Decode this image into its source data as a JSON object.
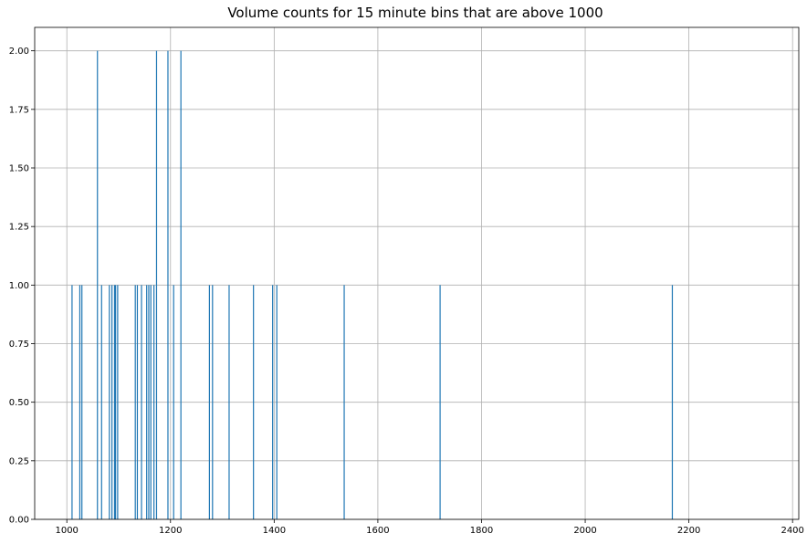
{
  "chart_data": {
    "type": "bar",
    "title": "Volume counts for 15 minute bins that are above 1000",
    "xlabel": "",
    "ylabel": "",
    "xlim": [
      938,
      2412
    ],
    "ylim": [
      0,
      2.1
    ],
    "grid": true,
    "bar_color": "#1f77b4",
    "grid_color": "#b0b0b0",
    "x_ticks": [
      {
        "value": 1000,
        "label": "1000"
      },
      {
        "value": 1200,
        "label": "1200"
      },
      {
        "value": 1400,
        "label": "1400"
      },
      {
        "value": 1600,
        "label": "1600"
      },
      {
        "value": 1800,
        "label": "1800"
      },
      {
        "value": 2000,
        "label": "2000"
      },
      {
        "value": 2200,
        "label": "2200"
      },
      {
        "value": 2400,
        "label": "2400"
      }
    ],
    "y_ticks": [
      {
        "value": 0.0,
        "label": "0.00"
      },
      {
        "value": 0.25,
        "label": "0.25"
      },
      {
        "value": 0.5,
        "label": "0.50"
      },
      {
        "value": 0.75,
        "label": "0.75"
      },
      {
        "value": 1.0,
        "label": "1.00"
      },
      {
        "value": 1.25,
        "label": "1.25"
      },
      {
        "value": 1.5,
        "label": "1.50"
      },
      {
        "value": 1.75,
        "label": "1.75"
      },
      {
        "value": 2.0,
        "label": "2.00"
      }
    ],
    "bin_width": 2,
    "bins": [
      {
        "x": 1009,
        "count": 1
      },
      {
        "x": 1024,
        "count": 1
      },
      {
        "x": 1028,
        "count": 1
      },
      {
        "x": 1058,
        "count": 2
      },
      {
        "x": 1066,
        "count": 1
      },
      {
        "x": 1081,
        "count": 1
      },
      {
        "x": 1086,
        "count": 1
      },
      {
        "x": 1091,
        "count": 1
      },
      {
        "x": 1093,
        "count": 1
      },
      {
        "x": 1097,
        "count": 1
      },
      {
        "x": 1131,
        "count": 1
      },
      {
        "x": 1135,
        "count": 1
      },
      {
        "x": 1143,
        "count": 1
      },
      {
        "x": 1153,
        "count": 1
      },
      {
        "x": 1157,
        "count": 1
      },
      {
        "x": 1161,
        "count": 1
      },
      {
        "x": 1167,
        "count": 1
      },
      {
        "x": 1172,
        "count": 2
      },
      {
        "x": 1194,
        "count": 2
      },
      {
        "x": 1205,
        "count": 1
      },
      {
        "x": 1219,
        "count": 2
      },
      {
        "x": 1274,
        "count": 1
      },
      {
        "x": 1280,
        "count": 1
      },
      {
        "x": 1312,
        "count": 1
      },
      {
        "x": 1359,
        "count": 1
      },
      {
        "x": 1396,
        "count": 1
      },
      {
        "x": 1404,
        "count": 1
      },
      {
        "x": 1534,
        "count": 1
      },
      {
        "x": 1719,
        "count": 1
      },
      {
        "x": 2167,
        "count": 1
      }
    ]
  }
}
